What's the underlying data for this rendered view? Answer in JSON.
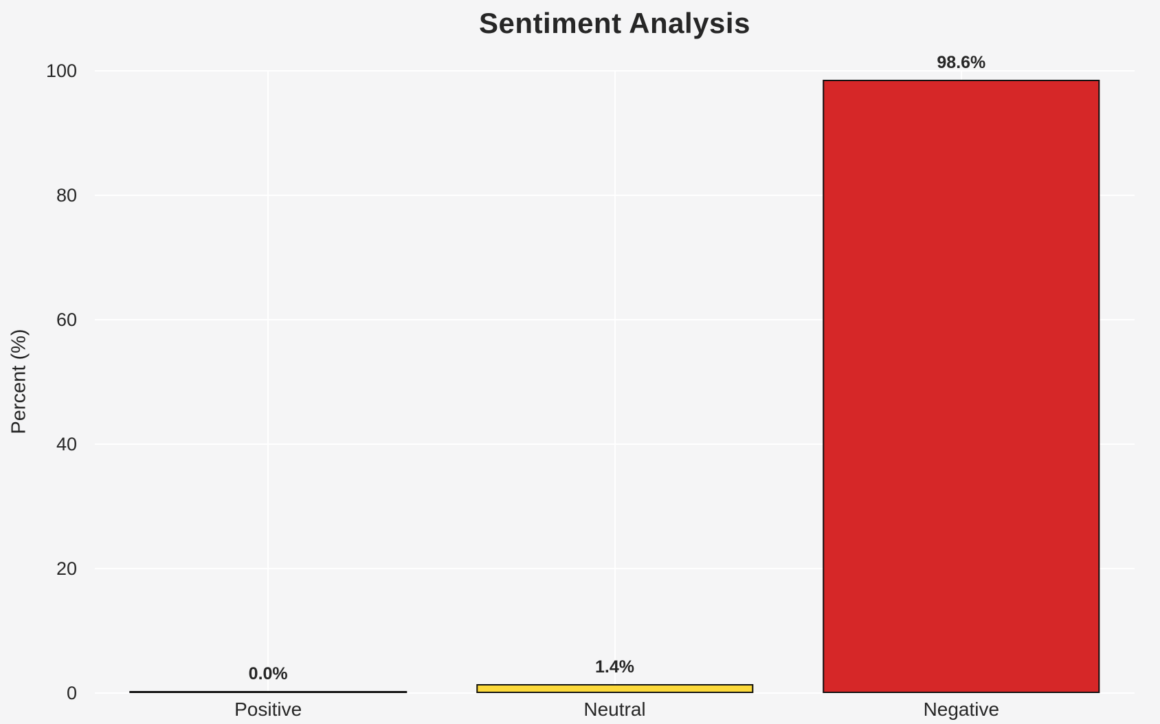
{
  "chart_data": {
    "type": "bar",
    "title": "Sentiment Analysis",
    "xlabel": "",
    "ylabel": "Percent (%)",
    "categories": [
      "Positive",
      "Neutral",
      "Negative"
    ],
    "values": [
      0.0,
      1.4,
      98.6
    ],
    "bar_labels": [
      "0.0%",
      "1.4%",
      "98.6%"
    ],
    "bar_fill_colors": [
      "none",
      "#fcd93b",
      "#d62728"
    ],
    "bar_edge_color": "#111111",
    "yticks": [
      0,
      20,
      40,
      60,
      80,
      100
    ],
    "ylim": [
      0,
      100
    ],
    "bar_width_fraction": 0.8,
    "grid": "both",
    "legend_position": "none",
    "background_color": "#f5f5f6",
    "gridline_color": "#ffffff",
    "text_color": "#262626"
  }
}
